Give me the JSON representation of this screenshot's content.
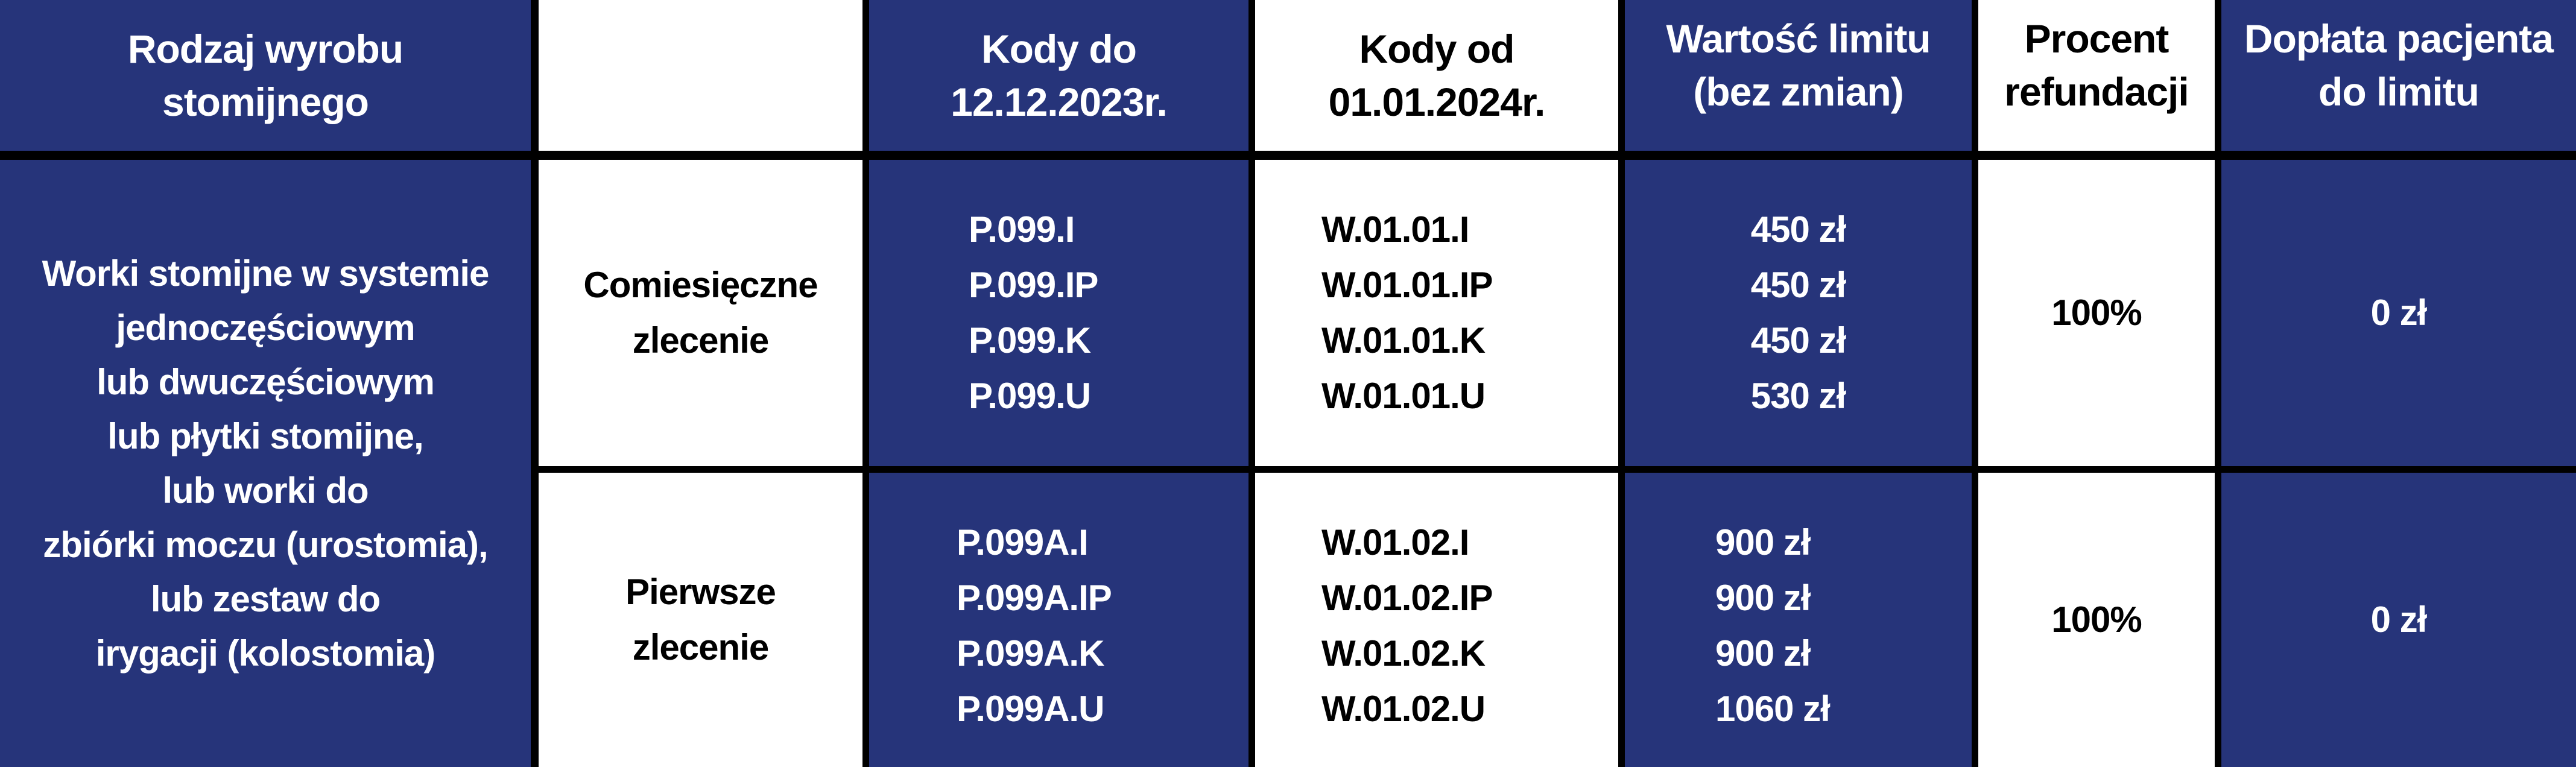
{
  "colors": {
    "navy": "#26347a",
    "white": "#ffffff",
    "border": "#000000"
  },
  "header": {
    "product_type": [
      "Rodzaj wyrobu",
      "stomijnego"
    ],
    "empty": "",
    "codes_until": [
      "Kody do",
      "12.12.2023r."
    ],
    "codes_from": [
      "Kody od",
      "01.01.2024r."
    ],
    "limit_value": [
      "Wartość limitu",
      "(bez zmian)"
    ],
    "refund_percent": [
      "Procent",
      "refundacji"
    ],
    "patient_copay": [
      "Dopłata pacjenta",
      "do limitu"
    ]
  },
  "product_description": [
    "Worki stomijne w systemie",
    "jednoczęściowym",
    "lub dwuczęściowym",
    "lub płytki stomijne,",
    "lub worki do",
    "zbiórki moczu (urostomia),",
    "lub zestaw do",
    "irygacji (kolostomia)"
  ],
  "rows": [
    {
      "order_type": [
        "Comiesięczne",
        "zlecenie"
      ],
      "codes_until": [
        "P.099.I",
        "P.099.IP",
        "P.099.K",
        "P.099.U"
      ],
      "codes_from": [
        "W.01.01.I",
        "W.01.01.IP",
        "W.01.01.K",
        "W.01.01.U"
      ],
      "limits": [
        "450 zł",
        "450 zł",
        "450 zł",
        "530 zł"
      ],
      "refund_percent": "100%",
      "patient_copay": "0 zł"
    },
    {
      "order_type": [
        "Pierwsze",
        "zlecenie"
      ],
      "codes_until": [
        "P.099A.I",
        "P.099A.IP",
        "P.099A.K",
        "P.099A.U"
      ],
      "codes_from": [
        "W.01.02.I",
        "W.01.02.IP",
        "W.01.02.K",
        "W.01.02.U"
      ],
      "limits": [
        "900 zł",
        "900 zł",
        "900 zł",
        "1060 zł"
      ],
      "refund_percent": "100%",
      "patient_copay": "0 zł"
    }
  ]
}
